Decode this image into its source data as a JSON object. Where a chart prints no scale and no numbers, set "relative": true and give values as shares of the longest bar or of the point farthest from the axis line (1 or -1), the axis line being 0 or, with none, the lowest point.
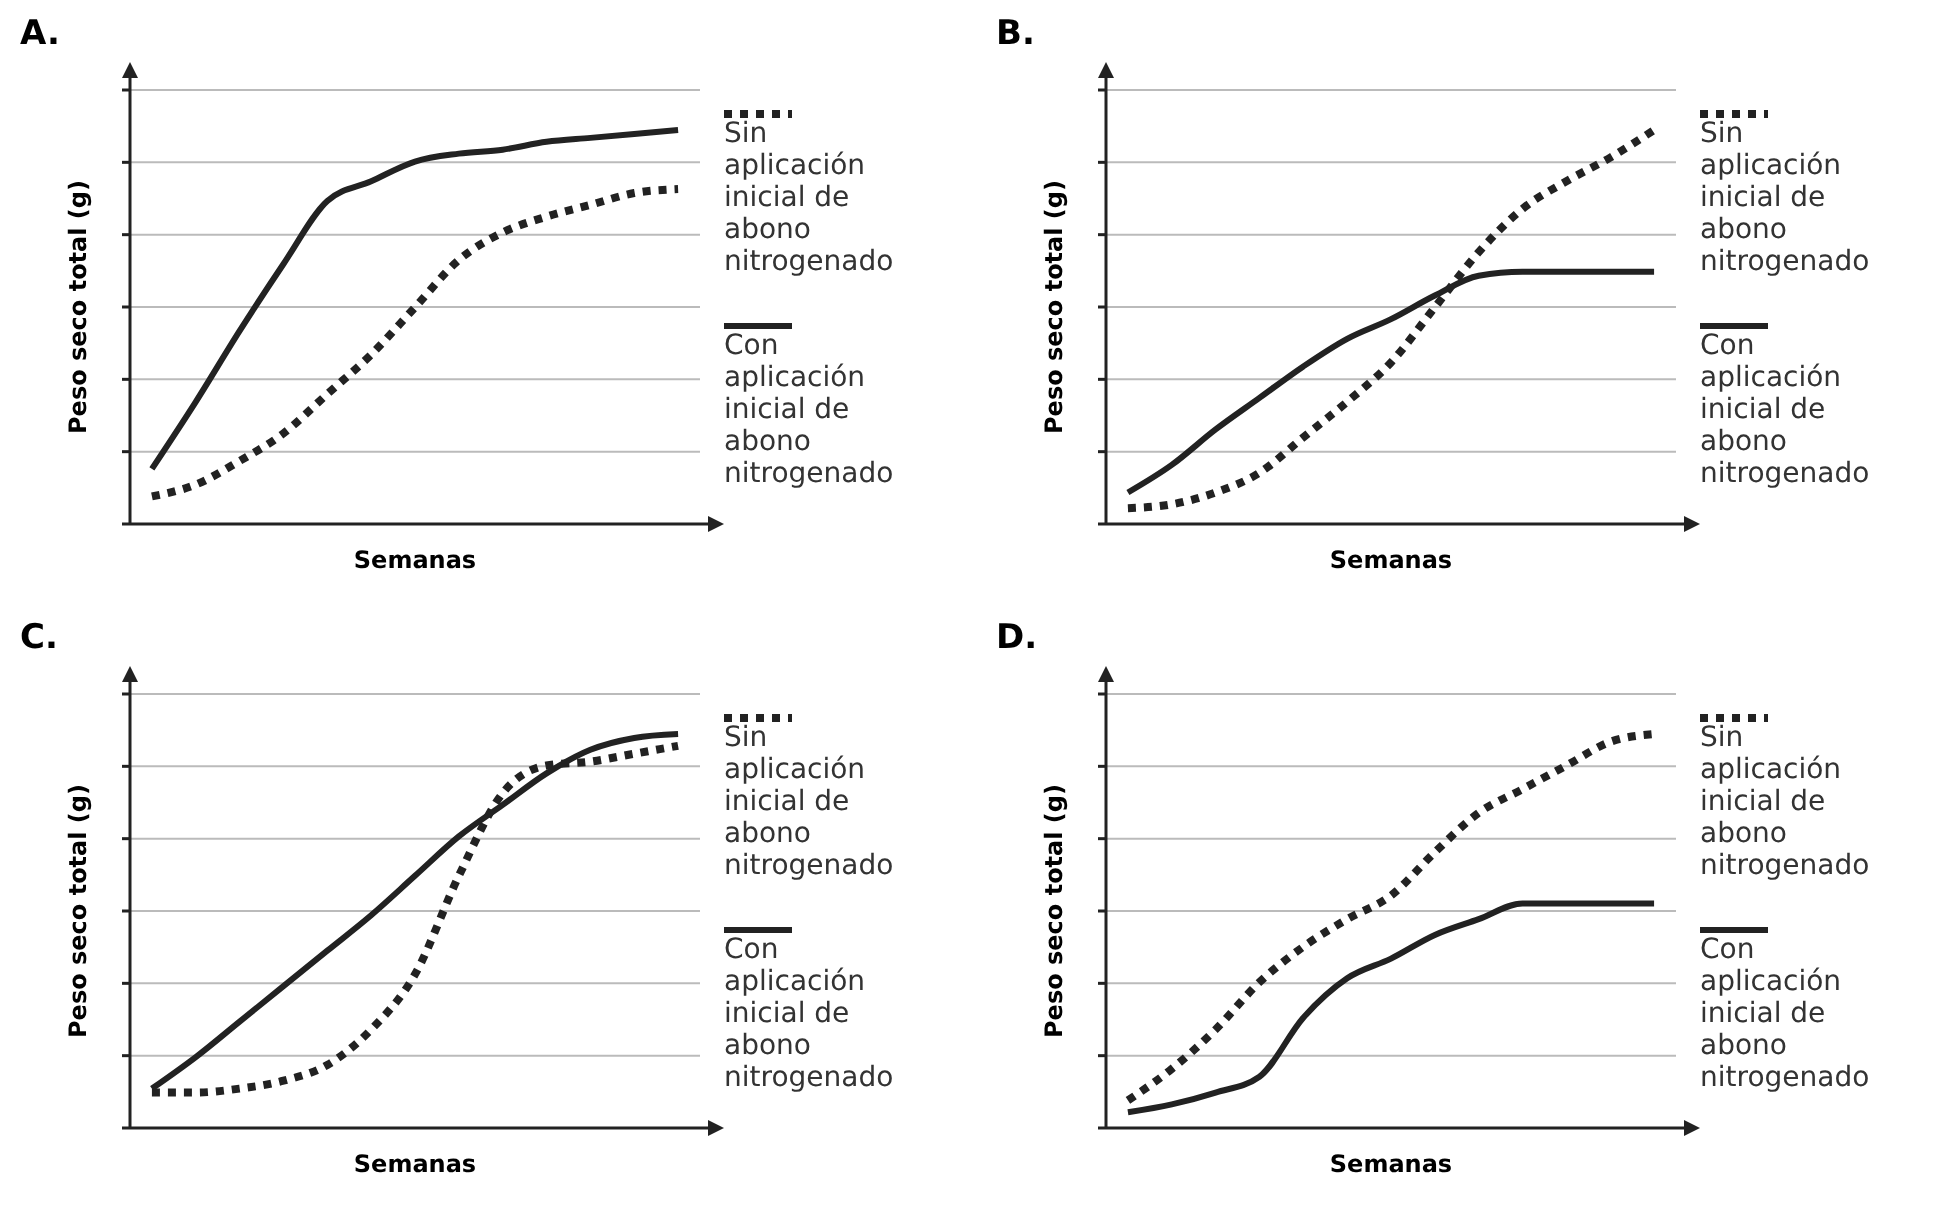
{
  "chart_data": [
    {
      "type": "line",
      "title": "A.",
      "xlabel": "Semanas",
      "ylabel": "Peso seco total (g)",
      "relative": true,
      "grid": "y",
      "legend": "right",
      "categories": [
        null,
        null,
        null,
        null,
        null,
        null,
        null,
        null,
        null,
        null,
        null,
        null,
        null
      ],
      "series": [
        {
          "name": "Sin aplicación inicial de abono nitrogenado",
          "color": "#222222",
          "line_style": "dotted",
          "values": [
            0.07,
            0.1,
            0.16,
            0.23,
            0.33,
            0.43,
            0.55,
            0.67,
            0.74,
            0.78,
            0.81,
            0.84,
            0.85
          ]
        },
        {
          "name": "Con aplicación inicial de abono nitrogenado",
          "color": "#222222",
          "line_style": "solid",
          "values": [
            0.14,
            0.31,
            0.49,
            0.66,
            0.82,
            0.87,
            0.92,
            0.94,
            0.95,
            0.97,
            0.98,
            0.99,
            1
          ]
        }
      ]
    },
    {
      "type": "line",
      "title": "B.",
      "xlabel": "Semanas",
      "ylabel": "Peso seco total (g)",
      "relative": true,
      "grid": "y",
      "legend": "right",
      "categories": [
        null,
        null,
        null,
        null,
        null,
        null,
        null,
        null,
        null,
        null,
        null,
        null,
        null
      ],
      "series": [
        {
          "name": "Sin aplicación inicial de abono nitrogenado",
          "color": "#222222",
          "line_style": "dotted",
          "values": [
            0.04,
            0.05,
            0.08,
            0.13,
            0.22,
            0.31,
            0.41,
            0.55,
            0.69,
            0.8,
            0.87,
            0.93,
            1
          ]
        },
        {
          "name": "Con aplicación inicial de abono nitrogenado",
          "color": "#222222",
          "line_style": "solid",
          "values": [
            0.08,
            0.15,
            0.24,
            0.32,
            0.4,
            0.47,
            0.52,
            0.58,
            0.63,
            0.64,
            0.64,
            0.64,
            0.64
          ]
        }
      ]
    },
    {
      "type": "line",
      "title": "C.",
      "xlabel": "Semanas",
      "ylabel": "Peso seco total (g)",
      "relative": true,
      "grid": "y",
      "legend": "right",
      "categories": [
        null,
        null,
        null,
        null,
        null,
        null,
        null,
        null,
        null,
        null,
        null,
        null,
        null
      ],
      "series": [
        {
          "name": "Sin aplicación inicial de abono nitrogenado",
          "color": "#222222",
          "line_style": "dotted",
          "values": [
            0.09,
            0.09,
            0.1,
            0.12,
            0.16,
            0.25,
            0.39,
            0.64,
            0.85,
            0.92,
            0.93,
            0.95,
            0.97
          ]
        },
        {
          "name": "Con aplicación inicial de abono nitrogenado",
          "color": "#222222",
          "line_style": "solid",
          "values": [
            0.1,
            0.18,
            0.27,
            0.36,
            0.45,
            0.54,
            0.64,
            0.74,
            0.82,
            0.9,
            0.96,
            0.99,
            1
          ]
        }
      ]
    },
    {
      "type": "line",
      "title": "D.",
      "xlabel": "Semanas",
      "ylabel": "Peso seco total (g)",
      "relative": true,
      "grid": "y",
      "legend": "right",
      "categories": [
        null,
        null,
        null,
        null,
        null,
        null,
        null,
        null,
        null,
        null,
        null,
        null,
        null
      ],
      "series": [
        {
          "name": "Sin aplicación inicial de abono nitrogenado",
          "color": "#222222",
          "line_style": "dotted",
          "values": [
            0.07,
            0.15,
            0.25,
            0.37,
            0.46,
            0.53,
            0.59,
            0.7,
            0.8,
            0.86,
            0.92,
            0.98,
            1
          ]
        },
        {
          "name": "Con aplicación inicial de abono nitrogenado",
          "color": "#222222",
          "line_style": "solid",
          "values": [
            0.04,
            0.06,
            0.09,
            0.13,
            0.28,
            0.38,
            0.43,
            0.49,
            0.53,
            0.57,
            0.57,
            0.57,
            0.57
          ]
        }
      ]
    }
  ]
}
